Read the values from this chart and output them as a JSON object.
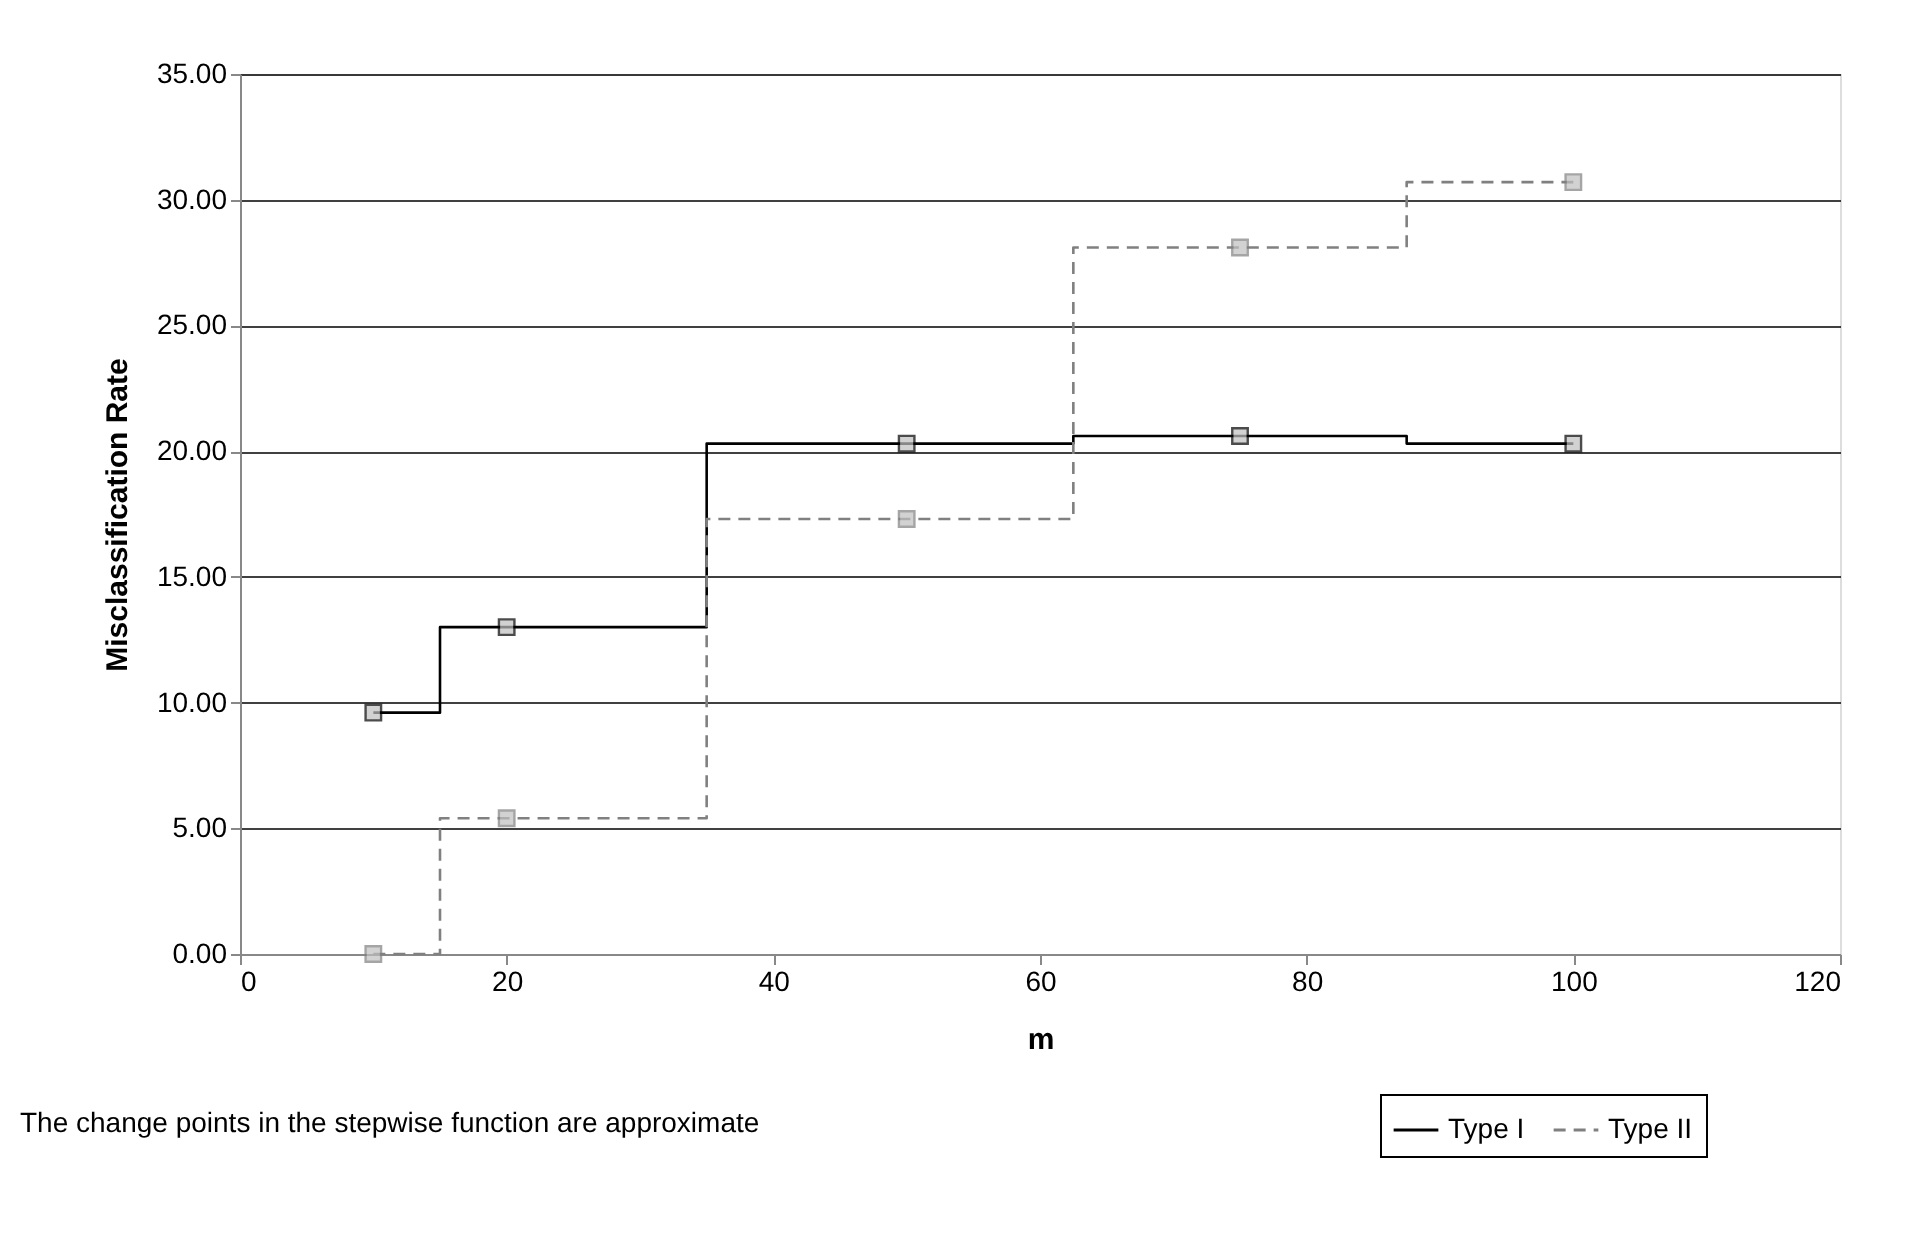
{
  "chart_data": {
    "type": "step",
    "xlabel": "m",
    "ylabel": "Misclassification Rate",
    "x": [
      10,
      20,
      50,
      75,
      100
    ],
    "series": [
      {
        "name": "Type I",
        "color": "#000000",
        "line_style": "solid",
        "values": [
          9.6,
          13.0,
          20.3,
          20.6,
          20.3
        ]
      },
      {
        "name": "Type II",
        "color": "#808080",
        "line_style": "dashed",
        "values": [
          0.0,
          5.4,
          17.3,
          28.1,
          30.7
        ]
      }
    ],
    "xlim": [
      0,
      120
    ],
    "xticks": [
      0,
      20,
      40,
      60,
      80,
      100,
      120
    ],
    "ylim": [
      0,
      35
    ],
    "yticks": [
      {
        "value": 0,
        "label": "0.00"
      },
      {
        "value": 5,
        "label": "5.00"
      },
      {
        "value": 10,
        "label": "10.00"
      },
      {
        "value": 15,
        "label": "15.00"
      },
      {
        "value": 20,
        "label": "20.00"
      },
      {
        "value": 25,
        "label": "25.00"
      },
      {
        "value": 30,
        "label": "30.00"
      },
      {
        "value": 35,
        "label": "35.00"
      }
    ],
    "grid": "y",
    "marker": "square",
    "legend": "bottom right",
    "annotations": [
      "The change points in the stepwise function are approximate"
    ]
  }
}
